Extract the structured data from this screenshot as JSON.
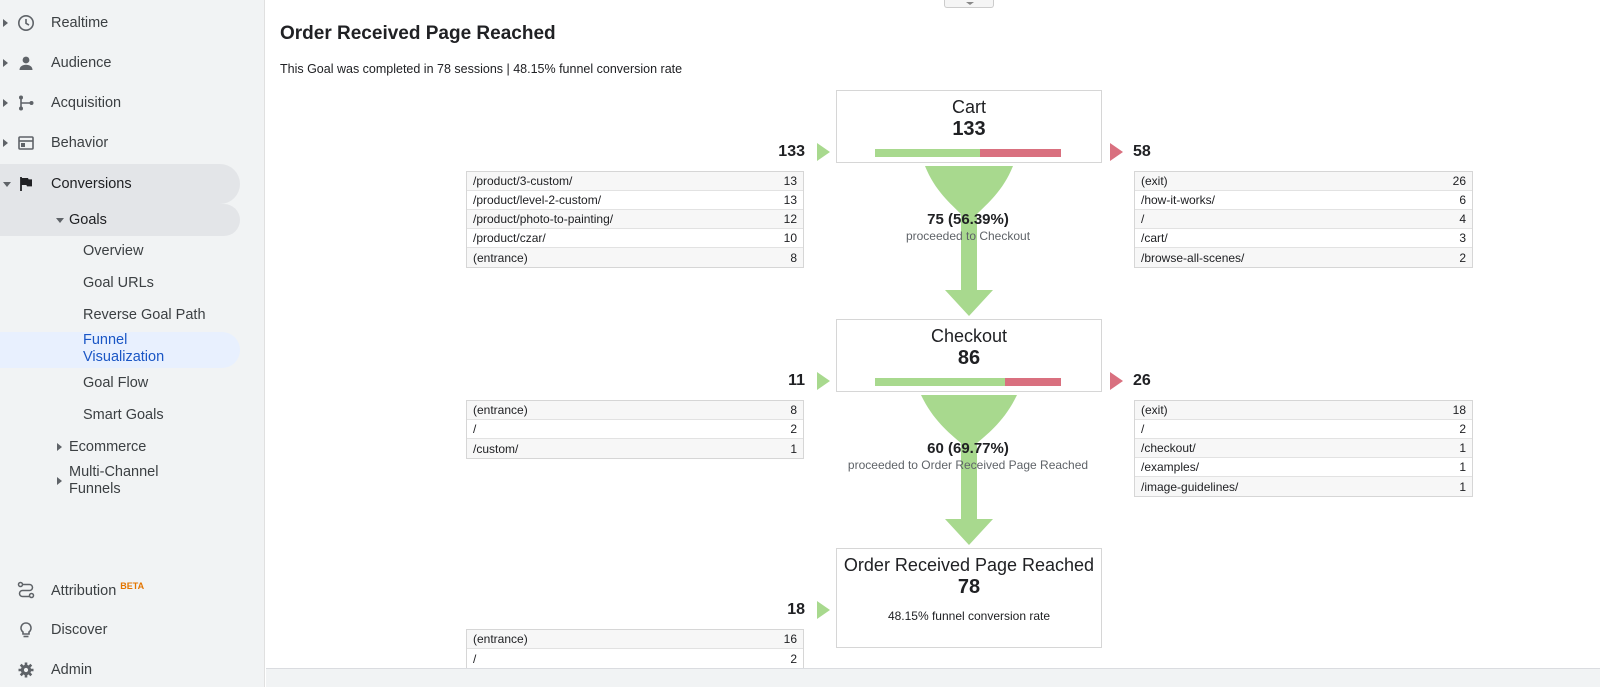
{
  "sidebar": {
    "items": [
      {
        "label": "Realtime"
      },
      {
        "label": "Audience"
      },
      {
        "label": "Acquisition"
      },
      {
        "label": "Behavior"
      },
      {
        "label": "Conversions"
      }
    ],
    "goals": {
      "label": "Goals",
      "children": [
        "Overview",
        "Goal URLs",
        "Reverse Goal Path",
        "Funnel Visualization",
        "Goal Flow",
        "Smart Goals"
      ]
    },
    "ecommerce": "Ecommerce",
    "multichannel": "Multi-Channel Funnels",
    "attribution": {
      "label": "Attribution",
      "badge": "BETA"
    },
    "discover": "Discover",
    "admin": "Admin"
  },
  "main": {
    "title": "Order Received Page Reached",
    "summary": "This Goal was completed in 78 sessions | 48.15% funnel conversion rate"
  },
  "funnel": {
    "steps": [
      {
        "name": "Cart",
        "count": "133",
        "entrances": "133",
        "exits": "58",
        "proceed_fraction": 0.5639,
        "entrance_sources": [
          {
            "page": "/product/3-custom/",
            "count": "13"
          },
          {
            "page": "/product/level-2-custom/",
            "count": "13"
          },
          {
            "page": "/product/photo-to-painting/",
            "count": "12"
          },
          {
            "page": "/product/czar/",
            "count": "10"
          },
          {
            "page": "(entrance)",
            "count": "8"
          }
        ],
        "exit_pages": [
          {
            "page": "(exit)",
            "count": "26"
          },
          {
            "page": "/how-it-works/",
            "count": "6"
          },
          {
            "page": "/",
            "count": "4"
          },
          {
            "page": "/cart/",
            "count": "3"
          },
          {
            "page": "/browse-all-scenes/",
            "count": "2"
          }
        ],
        "proceed_pct": "75 (56.39%)",
        "proceed_text": "proceeded to Checkout"
      },
      {
        "name": "Checkout",
        "count": "86",
        "entrances": "11",
        "exits": "26",
        "proceed_fraction": 0.6977,
        "entrance_sources": [
          {
            "page": "(entrance)",
            "count": "8"
          },
          {
            "page": "/",
            "count": "2"
          },
          {
            "page": "/custom/",
            "count": "1"
          }
        ],
        "exit_pages": [
          {
            "page": "(exit)",
            "count": "18"
          },
          {
            "page": "/",
            "count": "2"
          },
          {
            "page": "/checkout/",
            "count": "1"
          },
          {
            "page": "/examples/",
            "count": "1"
          },
          {
            "page": "/image-guidelines/",
            "count": "1"
          }
        ],
        "proceed_pct": "60 (69.77%)",
        "proceed_text": "proceeded to Order Received Page Reached"
      },
      {
        "name": "Order Received Page Reached",
        "count": "78",
        "entrances": "18",
        "conversion_note": "48.15% funnel conversion rate",
        "entrance_sources": [
          {
            "page": "(entrance)",
            "count": "16"
          },
          {
            "page": "/",
            "count": "2"
          }
        ]
      }
    ]
  },
  "colors": {
    "proceed_green": "#a8d98e",
    "exit_red": "#d9707f",
    "selected_blue": "#1a56c5"
  }
}
